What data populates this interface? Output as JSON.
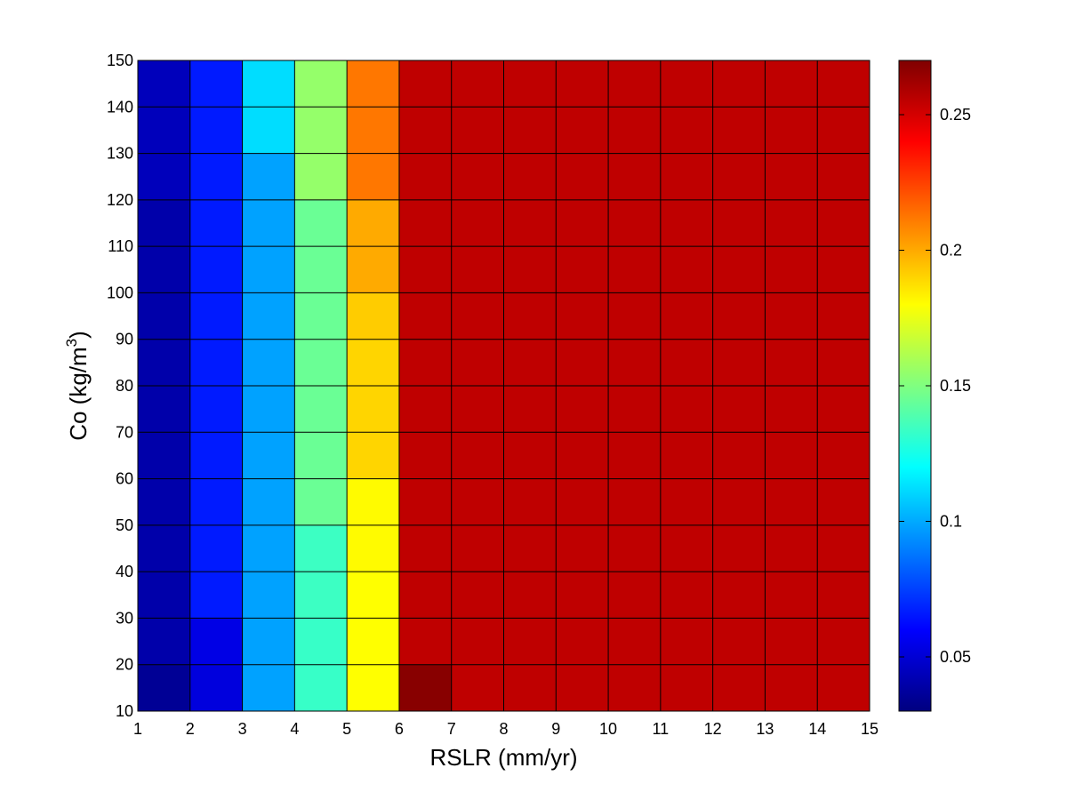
{
  "chart_data": {
    "type": "heatmap",
    "title": "",
    "xlabel": "RSLR (mm/yr)",
    "ylabel_main": "Co (kg/m",
    "ylabel_sup": "3",
    "ylabel_end": ")",
    "x_edges": [
      1,
      2,
      3,
      4,
      5,
      6,
      7,
      8,
      9,
      10,
      11,
      12,
      13,
      14,
      15
    ],
    "y_edges": [
      10,
      20,
      30,
      40,
      50,
      60,
      70,
      80,
      90,
      100,
      110,
      120,
      130,
      140,
      150
    ],
    "xlim": [
      1,
      15
    ],
    "ylim": [
      10,
      150
    ],
    "xticks": [
      "1",
      "2",
      "3",
      "4",
      "5",
      "6",
      "7",
      "8",
      "9",
      "10",
      "11",
      "12",
      "13",
      "14",
      "15"
    ],
    "yticks": [
      "10",
      "20",
      "30",
      "40",
      "50",
      "60",
      "70",
      "80",
      "90",
      "100",
      "110",
      "120",
      "130",
      "140",
      "150"
    ],
    "values_note": "rows from y=10-20 (bottom) to y=140-150 (top); columns from x=1-2 to x=14-15",
    "values": [
      [
        0.035,
        0.052,
        0.098,
        0.133,
        0.18,
        0.268,
        0.255,
        0.255,
        0.255,
        0.255,
        0.255,
        0.255,
        0.255,
        0.255
      ],
      [
        0.04,
        0.054,
        0.098,
        0.133,
        0.18,
        0.255,
        0.255,
        0.255,
        0.255,
        0.255,
        0.255,
        0.255,
        0.255,
        0.255
      ],
      [
        0.04,
        0.066,
        0.098,
        0.134,
        0.18,
        0.255,
        0.255,
        0.255,
        0.255,
        0.255,
        0.255,
        0.255,
        0.255,
        0.255
      ],
      [
        0.04,
        0.066,
        0.098,
        0.134,
        0.181,
        0.255,
        0.255,
        0.255,
        0.255,
        0.255,
        0.255,
        0.255,
        0.255,
        0.255
      ],
      [
        0.04,
        0.066,
        0.098,
        0.145,
        0.181,
        0.255,
        0.255,
        0.255,
        0.255,
        0.255,
        0.255,
        0.255,
        0.255,
        0.255
      ],
      [
        0.04,
        0.066,
        0.098,
        0.145,
        0.19,
        0.255,
        0.255,
        0.255,
        0.255,
        0.255,
        0.255,
        0.255,
        0.255,
        0.255
      ],
      [
        0.04,
        0.066,
        0.098,
        0.145,
        0.19,
        0.255,
        0.255,
        0.255,
        0.255,
        0.255,
        0.255,
        0.255,
        0.255,
        0.255
      ],
      [
        0.04,
        0.066,
        0.098,
        0.145,
        0.19,
        0.255,
        0.255,
        0.255,
        0.255,
        0.255,
        0.255,
        0.255,
        0.255,
        0.255
      ],
      [
        0.04,
        0.066,
        0.098,
        0.145,
        0.192,
        0.255,
        0.255,
        0.255,
        0.255,
        0.255,
        0.255,
        0.255,
        0.255,
        0.255
      ],
      [
        0.04,
        0.066,
        0.098,
        0.145,
        0.2,
        0.255,
        0.255,
        0.255,
        0.255,
        0.255,
        0.255,
        0.255,
        0.255,
        0.255
      ],
      [
        0.04,
        0.066,
        0.098,
        0.145,
        0.2,
        0.255,
        0.255,
        0.255,
        0.255,
        0.255,
        0.255,
        0.255,
        0.255,
        0.255
      ],
      [
        0.044,
        0.066,
        0.098,
        0.155,
        0.212,
        0.255,
        0.255,
        0.255,
        0.255,
        0.255,
        0.255,
        0.255,
        0.255,
        0.255
      ],
      [
        0.044,
        0.066,
        0.112,
        0.155,
        0.212,
        0.255,
        0.255,
        0.255,
        0.255,
        0.255,
        0.255,
        0.255,
        0.255,
        0.255
      ],
      [
        0.044,
        0.066,
        0.112,
        0.155,
        0.212,
        0.255,
        0.255,
        0.255,
        0.255,
        0.255,
        0.255,
        0.255,
        0.255,
        0.255
      ]
    ],
    "colormap": "jet",
    "clim": [
      0.03,
      0.27
    ],
    "colorbar_ticks": [
      "0.05",
      "0.1",
      "0.15",
      "0.2",
      "0.25"
    ],
    "colorbar_tick_values": [
      0.05,
      0.1,
      0.15,
      0.2,
      0.25
    ],
    "grid": true,
    "legend": "colorbar-right"
  }
}
